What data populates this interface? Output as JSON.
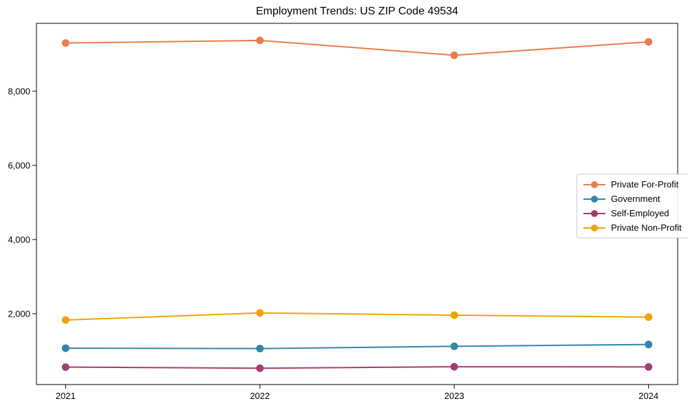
{
  "chart_data": {
    "type": "line",
    "title": "Employment Trends: US ZIP Code 49534",
    "xlabel": "",
    "ylabel": "",
    "grid": false,
    "legend_position": "center-right",
    "x": [
      2021,
      2022,
      2023,
      2024
    ],
    "x_tick_labels": [
      "2021",
      "2022",
      "2023",
      "2024"
    ],
    "y_ticks": [
      2000,
      4000,
      6000,
      8000
    ],
    "y_tick_labels": [
      "2,000",
      "4,000",
      "6,000",
      "8,000"
    ],
    "xlim": [
      2020.85,
      2024.15
    ],
    "ylim": [
      90,
      9830
    ],
    "series": [
      {
        "name": "Private For-Profit",
        "color": "#E97D4B",
        "values": [
          9300,
          9370,
          8970,
          9330
        ]
      },
      {
        "name": "Government",
        "color": "#3186A8",
        "values": [
          1070,
          1060,
          1120,
          1170
        ]
      },
      {
        "name": "Self-Employed",
        "color": "#A33C73",
        "values": [
          560,
          530,
          570,
          565
        ]
      },
      {
        "name": "Private Non-Profit",
        "color": "#F2A104",
        "values": [
          1830,
          2020,
          1960,
          1910
        ]
      }
    ],
    "axis_color": "#000000",
    "tick_label_color": "#000000"
  }
}
